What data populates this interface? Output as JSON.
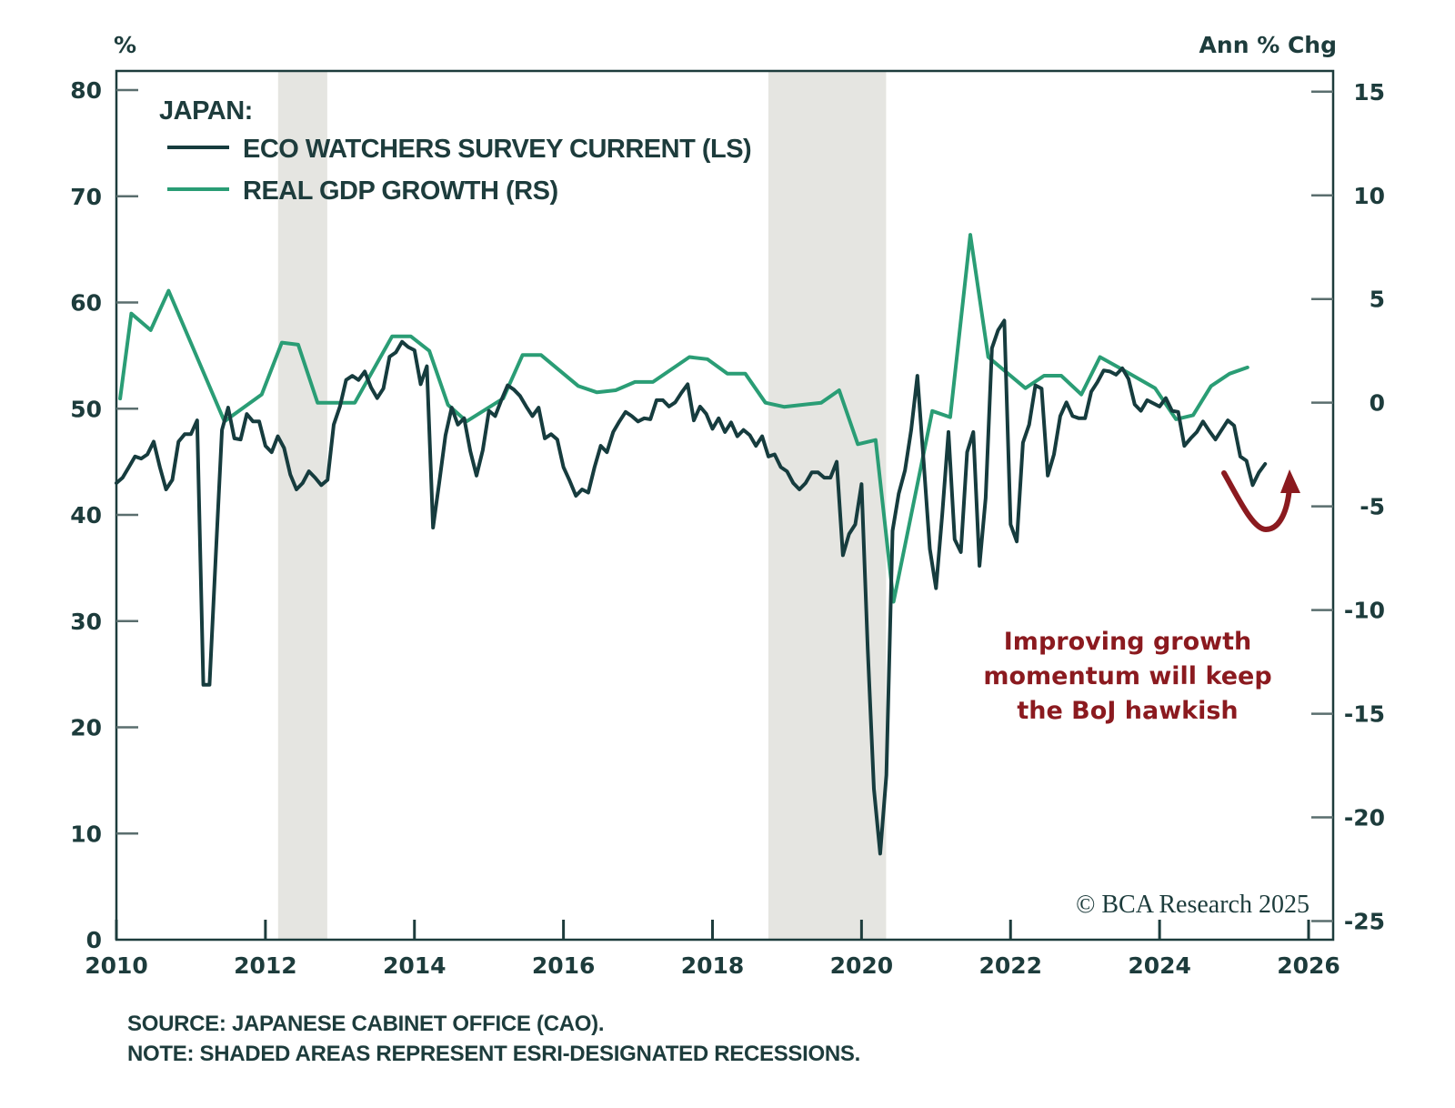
{
  "chart_data": {
    "type": "line",
    "title": "JAPAN:",
    "left_axis_label": "%",
    "right_axis_label": "Ann % Chg",
    "x_ticks": [
      "2010",
      "2012",
      "2014",
      "2016",
      "2018",
      "2020",
      "2022",
      "2024",
      "2026"
    ],
    "x_range": [
      2010,
      2026
    ],
    "left_ticks": [
      "0",
      "10",
      "20",
      "30",
      "40",
      "50",
      "60",
      "70",
      "80"
    ],
    "left_range": [
      0,
      81.8
    ],
    "right_ticks": [
      "-25",
      "-20",
      "-15",
      "-10",
      "-5",
      "0",
      "5",
      "10",
      "15"
    ],
    "right_range": [
      -25.9,
      16
    ],
    "grid": false,
    "legend_position": "top-left",
    "recessions": [
      {
        "start": 2012.17,
        "end": 2012.83
      },
      {
        "start": 2018.75,
        "end": 2020.33
      }
    ],
    "series": [
      {
        "name": "ECO WATCHERS SURVEY CURRENT (LS)",
        "axis": "left",
        "color": "#163c3e",
        "frequency": "monthly",
        "start": 2010.0,
        "values": [
          43.0,
          43.5,
          44.5,
          45.5,
          45.3,
          45.7,
          46.9,
          44.5,
          42.4,
          43.3,
          46.9,
          47.6,
          47.6,
          48.9,
          24.0,
          24.0,
          36.0,
          48.0,
          50.1,
          47.2,
          47.1,
          49.5,
          48.8,
          48.8,
          46.5,
          45.9,
          47.4,
          46.3,
          43.8,
          42.4,
          43.0,
          44.1,
          43.5,
          42.8,
          43.3,
          48.5,
          50.2,
          52.7,
          53.1,
          52.7,
          53.5,
          52.0,
          51.0,
          51.9,
          54.9,
          55.3,
          56.3,
          55.8,
          55.5,
          52.3,
          54.0,
          38.8,
          43.1,
          47.5,
          50.1,
          48.5,
          49.1,
          46.0,
          43.7,
          46.1,
          49.8,
          49.3,
          50.8,
          52.2,
          51.8,
          51.2,
          50.2,
          49.3,
          50.1,
          47.2,
          47.6,
          47.1,
          44.5,
          43.2,
          41.8,
          42.4,
          42.1,
          44.5,
          46.5,
          45.9,
          47.8,
          48.8,
          49.7,
          49.3,
          48.8,
          49.1,
          49.0,
          50.8,
          50.8,
          50.2,
          50.6,
          51.5,
          52.3,
          48.9,
          50.2,
          49.5,
          48.1,
          49.1,
          47.8,
          48.7,
          47.4,
          48.0,
          47.5,
          46.5,
          47.4,
          45.5,
          45.7,
          44.5,
          44.1,
          43.0,
          42.4,
          43.0,
          44.0,
          44.0,
          43.5,
          43.5,
          45.0,
          36.2,
          38.2,
          39.1,
          42.9,
          27.4,
          14.2,
          8.1,
          15.5,
          38.5,
          42.0,
          44.2,
          48.0,
          53.1,
          45.0,
          36.8,
          33.1,
          40.0,
          47.8,
          37.7,
          36.5,
          45.9,
          47.8,
          35.2,
          41.6,
          55.7,
          57.4,
          58.3,
          39.1,
          37.5,
          46.8,
          48.5,
          52.2,
          51.9,
          43.7,
          45.7,
          49.3,
          50.6,
          49.3,
          49.1,
          49.1,
          51.6,
          52.5,
          53.6,
          53.5,
          53.2,
          53.8,
          52.8,
          50.4,
          49.8,
          50.8,
          50.5,
          50.2,
          51.0,
          49.8,
          49.7,
          46.5,
          47.2,
          47.8,
          48.8,
          47.9,
          47.1,
          48.0,
          48.9,
          48.4,
          45.5,
          45.1,
          42.8,
          44.0,
          44.8
        ]
      },
      {
        "name": "REAL GDP GROWTH (RS)",
        "axis": "right",
        "color": "#2a9d75",
        "frequency": "quarterly",
        "x": [
          2010.05,
          2010.2,
          2010.46,
          2010.7,
          2011.45,
          2011.95,
          2012.22,
          2012.44,
          2012.7,
          2013.2,
          2013.7,
          2013.95,
          2014.2,
          2014.45,
          2014.7,
          2015.19,
          2015.45,
          2015.7,
          2016.2,
          2016.45,
          2016.7,
          2016.96,
          2017.2,
          2017.69,
          2017.93,
          2018.2,
          2018.44,
          2018.71,
          2018.96,
          2019.46,
          2019.7,
          2019.95,
          2020.19,
          2020.43,
          2020.95,
          2021.19,
          2021.46,
          2021.7,
          2022.2,
          2022.45,
          2022.68,
          2022.95,
          2023.2,
          2023.45,
          2023.94,
          2024.22,
          2024.45,
          2024.69,
          2024.94,
          2025.18
        ],
        "values": [
          0.2,
          4.3,
          3.5,
          5.4,
          -0.9,
          0.4,
          2.9,
          2.8,
          0.0,
          0.0,
          3.2,
          3.2,
          2.5,
          -0.1,
          -0.9,
          0.2,
          2.3,
          2.3,
          0.8,
          0.5,
          0.6,
          1.0,
          1.0,
          2.2,
          2.1,
          1.4,
          1.4,
          0.0,
          -0.2,
          0.0,
          0.6,
          -2.0,
          -1.8,
          -9.6,
          -0.4,
          -0.7,
          8.1,
          2.2,
          0.7,
          1.3,
          1.3,
          0.4,
          2.2,
          1.7,
          0.7,
          -0.8,
          -0.6,
          0.8,
          1.4,
          1.7
        ]
      }
    ],
    "annotation": {
      "lines": [
        "Improving growth",
        "momentum will keep",
        "the BoJ hawkish"
      ],
      "color": "#8b1a1f",
      "arrow": "u-turn-up"
    },
    "copyright": "© BCA Research 2025",
    "footer": [
      "SOURCE: JAPANESE CABINET OFFICE (CAO).",
      "NOTE: SHADED AREAS REPRESENT ESRI-DESIGNATED RECESSIONS."
    ]
  }
}
